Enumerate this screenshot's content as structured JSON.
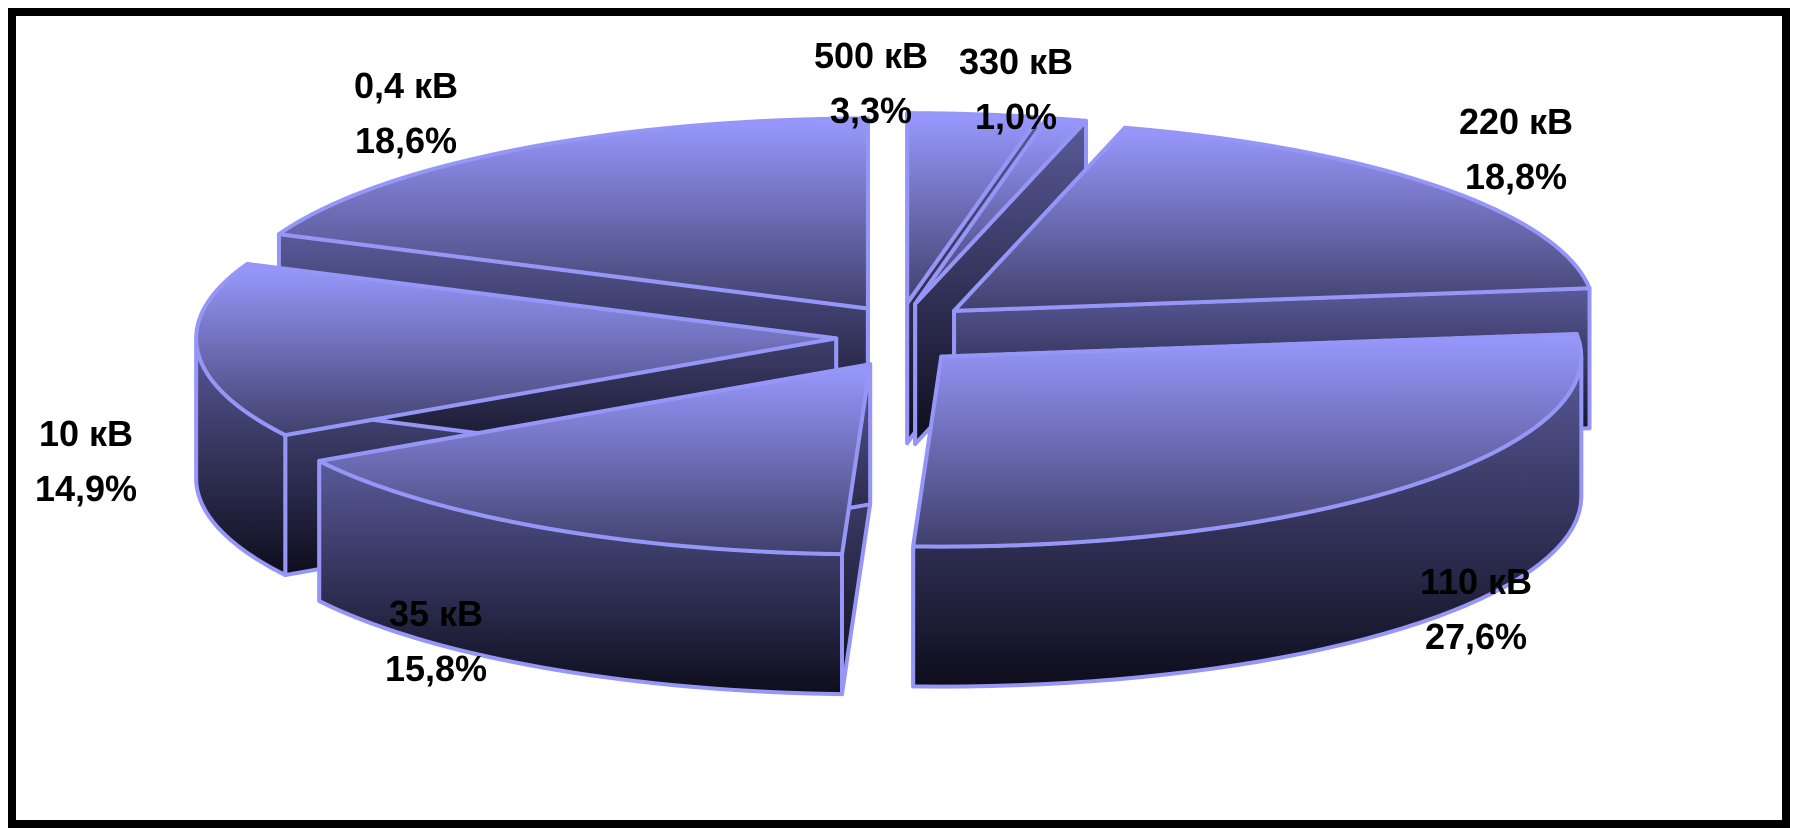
{
  "colors": {
    "edge": "#9696f7",
    "top_light": "#9999ff",
    "top_dark": "#40406c",
    "side_light": "#5a5a9a",
    "side_dark": "#0d0d1c",
    "frame": "#000000"
  },
  "chart_data": {
    "type": "pie",
    "style": "3d-exploded",
    "unit": "%",
    "slices": [
      {
        "label": "500 кВ",
        "value": 3.3,
        "value_text": "3,3%"
      },
      {
        "label": "330 кВ",
        "value": 1.0,
        "value_text": "1,0%"
      },
      {
        "label": "220 кВ",
        "value": 18.8,
        "value_text": "18,8%"
      },
      {
        "label": "110 кВ",
        "value": 27.6,
        "value_text": "27,6%"
      },
      {
        "label": "35 кВ",
        "value": 15.8,
        "value_text": "15,8%"
      },
      {
        "label": "10 кВ",
        "value": 14.9,
        "value_text": "14,9%"
      },
      {
        "label": "0,4 кВ",
        "value": 18.6,
        "value_text": "18,6%"
      }
    ],
    "legend": "none",
    "labels": "outside, per slice"
  }
}
